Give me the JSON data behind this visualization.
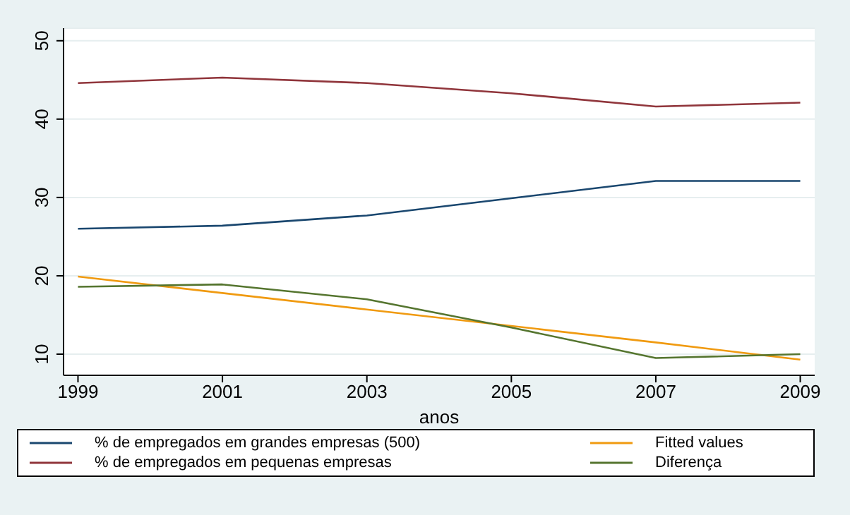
{
  "chart_data": {
    "type": "line",
    "xlabel": "anos",
    "x": [
      1999,
      2001,
      2003,
      2005,
      2007,
      2009
    ],
    "series": [
      {
        "name": "% de empregados em grandes empresas (500)",
        "color": "#1a476f",
        "values": [
          26,
          26.4,
          27.7,
          29.9,
          32.1,
          32.1
        ]
      },
      {
        "name": "% de empregados em pequenas empresas",
        "color": "#90353b",
        "values": [
          44.6,
          45.3,
          44.6,
          43.3,
          41.6,
          42.1
        ]
      },
      {
        "name": "Fitted values",
        "color": "#f09a10",
        "values": [
          19.9,
          17.8,
          15.7,
          13.6,
          11.5,
          9.3
        ]
      },
      {
        "name": "Diferença",
        "color": "#55752f",
        "values": [
          18.6,
          18.9,
          17.0,
          13.4,
          9.5,
          10.0
        ]
      }
    ],
    "xlim": [
      1998.8,
      2009.2
    ],
    "xticks": [
      1999,
      2001,
      2003,
      2005,
      2007,
      2009
    ],
    "ylim": [
      7.3,
      51.6
    ],
    "yticks": [
      10,
      20,
      30,
      40,
      50
    ],
    "grid": "y",
    "legend": "bottom",
    "marker": "none",
    "line_style": "solid"
  }
}
